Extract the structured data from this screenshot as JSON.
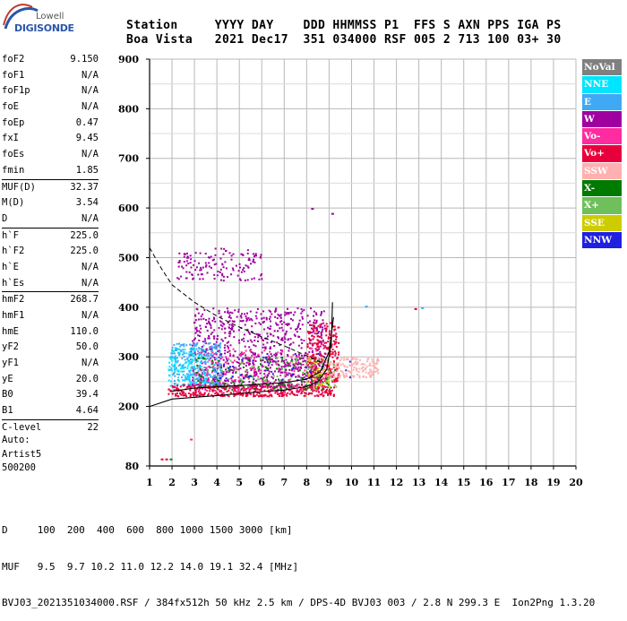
{
  "logo": {
    "line1": "Lowell",
    "line2": "DIGISONDE"
  },
  "header": {
    "labels": [
      "Station",
      "YYYY",
      "DAY",
      "DDD",
      "HHMMSS",
      "P1",
      "FFS",
      "S",
      "AXN",
      "PPS",
      "IGA",
      "PS"
    ],
    "values": [
      "Boa Vista",
      "2021",
      "Dec17",
      "351",
      "034000",
      "RSF",
      "005",
      "2",
      "713",
      "100",
      "03+",
      "30"
    ]
  },
  "parameters": [
    {
      "label": "foF2",
      "value": "9.150"
    },
    {
      "label": "foF1",
      "value": "N/A"
    },
    {
      "label": "foF1p",
      "value": "N/A"
    },
    {
      "label": "foE",
      "value": "N/A"
    },
    {
      "label": "foEp",
      "value": "0.47"
    },
    {
      "label": "fxI",
      "value": "9.45"
    },
    {
      "label": "foEs",
      "value": "N/A"
    },
    {
      "label": "fmin",
      "value": "1.85",
      "sep": true
    },
    {
      "label": "MUF(D)",
      "value": "32.37"
    },
    {
      "label": "M(D)",
      "value": "3.54"
    },
    {
      "label": "D",
      "value": "N/A",
      "sep": true
    },
    {
      "label": "h`F",
      "value": "225.0"
    },
    {
      "label": "h`F2",
      "value": "225.0"
    },
    {
      "label": "h`E",
      "value": "N/A"
    },
    {
      "label": "h`Es",
      "value": "N/A",
      "sep": true
    },
    {
      "label": "hmF2",
      "value": "268.7"
    },
    {
      "label": "hmF1",
      "value": "N/A"
    },
    {
      "label": "hmE",
      "value": "110.0"
    },
    {
      "label": "yF2",
      "value": "50.0"
    },
    {
      "label": "yF1",
      "value": "N/A"
    },
    {
      "label": "yE",
      "value": "20.0"
    },
    {
      "label": "B0",
      "value": "39.4"
    },
    {
      "label": "B1",
      "value": "4.64",
      "sep": true
    },
    {
      "label": "C-level",
      "value": "22",
      "sep": true
    }
  ],
  "auto": {
    "line1": "Auto:",
    "line2": "Artist5",
    "line3": "500200"
  },
  "legend": [
    {
      "label": "NoVal",
      "bg": "#808080",
      "fg": "#ffffff"
    },
    {
      "label": "NNE",
      "bg": "#00e5ff",
      "fg": "#ffffff"
    },
    {
      "label": "E",
      "bg": "#3fa9f5",
      "fg": "#ffffff"
    },
    {
      "label": "W",
      "bg": "#a000a0",
      "fg": "#ffffff"
    },
    {
      "label": "Vo-",
      "bg": "#ff2ba0",
      "fg": "#ffffff"
    },
    {
      "label": "Vo+",
      "bg": "#e8003c",
      "fg": "#ffffff"
    },
    {
      "label": "SSW",
      "bg": "#ffb0b0",
      "fg": "#ffffff"
    },
    {
      "label": "X-",
      "bg": "#007a00",
      "fg": "#ffffff"
    },
    {
      "label": "X+",
      "bg": "#6fbf5a",
      "fg": "#ffffff"
    },
    {
      "label": "SSE",
      "bg": "#cccc00",
      "fg": "#ffffff"
    },
    {
      "label": "NNW",
      "bg": "#2020e0",
      "fg": "#ffffff"
    }
  ],
  "chart_data": {
    "type": "scatter",
    "title": "",
    "xlabel": "",
    "ylabel": "",
    "xlim": [
      1,
      20
    ],
    "ylim": [
      80,
      900
    ],
    "xticks": [
      1,
      2,
      3,
      4,
      5,
      6,
      7,
      8,
      9,
      10,
      11,
      12,
      13,
      14,
      15,
      16,
      17,
      18,
      19,
      20
    ],
    "yticks": [
      80,
      200,
      300,
      400,
      500,
      600,
      700,
      800,
      900
    ],
    "grid": true,
    "legend_position": "right",
    "echo_clusters": [
      {
        "name": "W",
        "color": "#a000a0",
        "x": [
          2.8,
          8.8
        ],
        "y": [
          240,
          400
        ],
        "density": 900
      },
      {
        "name": "W",
        "color": "#a000a0",
        "x": [
          2.2,
          6.0
        ],
        "y": [
          455,
          520
        ],
        "density": 140
      },
      {
        "name": "E",
        "color": "#3fa9f5",
        "x": [
          1.9,
          4.2
        ],
        "y": [
          240,
          330
        ],
        "density": 300
      },
      {
        "name": "NNE",
        "color": "#00e5ff",
        "x": [
          1.8,
          3.5
        ],
        "y": [
          250,
          320
        ],
        "density": 120
      },
      {
        "name": "Vo+",
        "color": "#e8003c",
        "x": [
          1.8,
          9.2
        ],
        "y": [
          222,
          245
        ],
        "density": 400
      },
      {
        "name": "Vo+",
        "color": "#e8003c",
        "x": [
          8.0,
          9.4
        ],
        "y": [
          250,
          370
        ],
        "density": 260
      },
      {
        "name": "Vo-",
        "color": "#ff2ba0",
        "x": [
          3.0,
          9.0
        ],
        "y": [
          230,
          320
        ],
        "density": 200
      },
      {
        "name": "SSW",
        "color": "#ffb0b0",
        "x": [
          8.6,
          11.2
        ],
        "y": [
          260,
          300
        ],
        "density": 180
      },
      {
        "name": "X-",
        "color": "#007a00",
        "x": [
          3.0,
          9.3
        ],
        "y": [
          235,
          300
        ],
        "density": 120
      },
      {
        "name": "X+",
        "color": "#6fbf5a",
        "x": [
          3.5,
          9.3
        ],
        "y": [
          240,
          300
        ],
        "density": 90
      },
      {
        "name": "SSE",
        "color": "#cccc00",
        "x": [
          8.0,
          9.0
        ],
        "y": [
          240,
          300
        ],
        "density": 40
      },
      {
        "name": "NNW",
        "color": "#2020e0",
        "x": [
          4.0,
          10.0
        ],
        "y": [
          255,
          310
        ],
        "density": 40
      }
    ],
    "isolated_points": [
      {
        "x": 1.5,
        "y": 95,
        "color": "#e8003c"
      },
      {
        "x": 1.7,
        "y": 95,
        "color": "#e8003c"
      },
      {
        "x": 1.9,
        "y": 95,
        "color": "#007a00"
      },
      {
        "x": 2.8,
        "y": 135,
        "color": "#ff2ba0"
      },
      {
        "x": 12.8,
        "y": 398,
        "color": "#e8003c"
      },
      {
        "x": 13.1,
        "y": 400,
        "color": "#3fa9f5"
      },
      {
        "x": 10.6,
        "y": 403,
        "color": "#3fa9f5"
      },
      {
        "x": 9.1,
        "y": 590,
        "color": "#a000a0"
      },
      {
        "x": 8.2,
        "y": 600,
        "color": "#a000a0"
      }
    ],
    "profile_curve": [
      [
        1,
        200
      ],
      [
        2,
        215
      ],
      [
        4,
        222
      ],
      [
        6,
        230
      ],
      [
        7,
        233
      ],
      [
        8,
        240
      ],
      [
        8.5,
        250
      ],
      [
        8.9,
        275
      ],
      [
        9.1,
        330
      ],
      [
        9.15,
        410
      ]
    ],
    "trace_curve": [
      [
        1.9,
        230
      ],
      [
        3,
        237
      ],
      [
        5,
        242
      ],
      [
        7,
        248
      ],
      [
        8,
        255
      ],
      [
        8.6,
        270
      ],
      [
        9.0,
        310
      ],
      [
        9.2,
        380
      ]
    ],
    "dashed_curve": [
      [
        1,
        520
      ],
      [
        1.5,
        480
      ],
      [
        2,
        445
      ],
      [
        3,
        410
      ],
      [
        4,
        382
      ],
      [
        5,
        360
      ],
      [
        6,
        340
      ],
      [
        7,
        322
      ],
      [
        8,
        302
      ],
      [
        8.6,
        290
      ]
    ]
  },
  "footer": {
    "line1": "D     100  200  400  600  800 1000 1500 3000 [km]",
    "line2": "MUF   9.5  9.7 10.2 11.0 12.2 14.0 19.1 32.4 [MHz]",
    "line3": "BVJ03_2021351034000.RSF / 384fx512h 50 kHz 2.5 km / DPS-4D BVJ03 003 / 2.8 N 299.3 E  Ion2Png 1.3.20"
  }
}
